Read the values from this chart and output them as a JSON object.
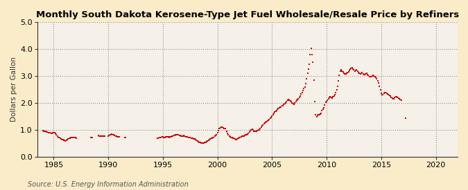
{
  "title": "Monthly South Dakota Kerosene-Type Jet Fuel Wholesale/Resale Price by Refiners",
  "ylabel": "Dollars per Gallon",
  "source": "Source: U.S. Energy Information Administration",
  "background_color": "#faecc8",
  "plot_bg_color": "#f5f0e8",
  "dot_color": "#cc0000",
  "xlim": [
    1983.5,
    2022
  ],
  "ylim": [
    0.0,
    5.0
  ],
  "xticks": [
    1985,
    1990,
    1995,
    2000,
    2005,
    2010,
    2015,
    2020
  ],
  "yticks": [
    0.0,
    1.0,
    2.0,
    3.0,
    4.0,
    5.0
  ],
  "data": [
    [
      1984.0,
      0.97
    ],
    [
      1984.08,
      0.95
    ],
    [
      1984.17,
      0.94
    ],
    [
      1984.25,
      0.93
    ],
    [
      1984.33,
      0.92
    ],
    [
      1984.42,
      0.91
    ],
    [
      1984.5,
      0.9
    ],
    [
      1984.58,
      0.89
    ],
    [
      1984.67,
      0.88
    ],
    [
      1984.75,
      0.87
    ],
    [
      1984.83,
      0.87
    ],
    [
      1984.92,
      0.88
    ],
    [
      1985.0,
      0.89
    ],
    [
      1985.08,
      0.88
    ],
    [
      1985.17,
      0.85
    ],
    [
      1985.25,
      0.8
    ],
    [
      1985.33,
      0.75
    ],
    [
      1985.42,
      0.72
    ],
    [
      1985.5,
      0.7
    ],
    [
      1985.58,
      0.68
    ],
    [
      1985.67,
      0.66
    ],
    [
      1985.75,
      0.64
    ],
    [
      1985.83,
      0.62
    ],
    [
      1985.92,
      0.61
    ],
    [
      1986.0,
      0.6
    ],
    [
      1986.08,
      0.59
    ],
    [
      1986.17,
      0.6
    ],
    [
      1986.25,
      0.63
    ],
    [
      1986.33,
      0.65
    ],
    [
      1986.42,
      0.67
    ],
    [
      1986.5,
      0.68
    ],
    [
      1986.58,
      0.7
    ],
    [
      1986.67,
      0.7
    ],
    [
      1986.75,
      0.71
    ],
    [
      1986.83,
      0.7
    ],
    [
      1986.92,
      0.7
    ],
    [
      1987.0,
      0.7
    ],
    [
      1987.08,
      0.69
    ],
    [
      1988.42,
      0.72
    ],
    [
      1988.5,
      0.72
    ],
    [
      1989.08,
      0.78
    ],
    [
      1989.17,
      0.77
    ],
    [
      1989.25,
      0.76
    ],
    [
      1989.33,
      0.76
    ],
    [
      1989.42,
      0.76
    ],
    [
      1989.5,
      0.75
    ],
    [
      1989.58,
      0.75
    ],
    [
      1989.67,
      0.75
    ],
    [
      1990.0,
      0.77
    ],
    [
      1990.08,
      0.78
    ],
    [
      1990.17,
      0.8
    ],
    [
      1990.25,
      0.82
    ],
    [
      1990.33,
      0.83
    ],
    [
      1990.42,
      0.82
    ],
    [
      1990.5,
      0.8
    ],
    [
      1990.58,
      0.78
    ],
    [
      1990.67,
      0.77
    ],
    [
      1990.75,
      0.75
    ],
    [
      1990.83,
      0.74
    ],
    [
      1990.92,
      0.73
    ],
    [
      1991.0,
      0.73
    ],
    [
      1991.5,
      0.72
    ],
    [
      1991.58,
      0.72
    ],
    [
      1994.5,
      0.68
    ],
    [
      1994.58,
      0.69
    ],
    [
      1994.67,
      0.7
    ],
    [
      1994.75,
      0.71
    ],
    [
      1994.83,
      0.72
    ],
    [
      1994.92,
      0.73
    ],
    [
      1995.0,
      0.73
    ],
    [
      1995.08,
      0.72
    ],
    [
      1995.17,
      0.72
    ],
    [
      1995.25,
      0.73
    ],
    [
      1995.33,
      0.73
    ],
    [
      1995.42,
      0.74
    ],
    [
      1995.5,
      0.73
    ],
    [
      1995.58,
      0.72
    ],
    [
      1995.67,
      0.73
    ],
    [
      1995.75,
      0.74
    ],
    [
      1995.83,
      0.76
    ],
    [
      1995.92,
      0.77
    ],
    [
      1996.0,
      0.78
    ],
    [
      1996.08,
      0.79
    ],
    [
      1996.17,
      0.8
    ],
    [
      1996.25,
      0.81
    ],
    [
      1996.33,
      0.82
    ],
    [
      1996.42,
      0.8
    ],
    [
      1996.5,
      0.79
    ],
    [
      1996.58,
      0.78
    ],
    [
      1996.67,
      0.77
    ],
    [
      1996.75,
      0.76
    ],
    [
      1996.83,
      0.77
    ],
    [
      1996.92,
      0.78
    ],
    [
      1997.0,
      0.76
    ],
    [
      1997.08,
      0.74
    ],
    [
      1997.17,
      0.73
    ],
    [
      1997.25,
      0.73
    ],
    [
      1997.33,
      0.72
    ],
    [
      1997.42,
      0.71
    ],
    [
      1997.5,
      0.7
    ],
    [
      1997.58,
      0.69
    ],
    [
      1997.67,
      0.68
    ],
    [
      1997.75,
      0.67
    ],
    [
      1997.83,
      0.66
    ],
    [
      1997.92,
      0.65
    ],
    [
      1998.0,
      0.63
    ],
    [
      1998.08,
      0.6
    ],
    [
      1998.17,
      0.57
    ],
    [
      1998.25,
      0.55
    ],
    [
      1998.33,
      0.53
    ],
    [
      1998.42,
      0.52
    ],
    [
      1998.5,
      0.51
    ],
    [
      1998.58,
      0.5
    ],
    [
      1998.67,
      0.5
    ],
    [
      1998.75,
      0.51
    ],
    [
      1998.83,
      0.52
    ],
    [
      1998.92,
      0.53
    ],
    [
      1999.0,
      0.55
    ],
    [
      1999.08,
      0.57
    ],
    [
      1999.17,
      0.6
    ],
    [
      1999.25,
      0.63
    ],
    [
      1999.33,
      0.65
    ],
    [
      1999.42,
      0.67
    ],
    [
      1999.5,
      0.68
    ],
    [
      1999.58,
      0.7
    ],
    [
      1999.67,
      0.72
    ],
    [
      1999.75,
      0.75
    ],
    [
      1999.83,
      0.78
    ],
    [
      1999.92,
      0.82
    ],
    [
      2000.0,
      0.9
    ],
    [
      2000.08,
      0.97
    ],
    [
      2000.17,
      1.03
    ],
    [
      2000.25,
      1.07
    ],
    [
      2000.33,
      1.1
    ],
    [
      2000.42,
      1.1
    ],
    [
      2000.5,
      1.08
    ],
    [
      2000.58,
      1.05
    ],
    [
      2000.67,
      1.05
    ],
    [
      2000.75,
      1.05
    ],
    [
      2000.83,
      0.93
    ],
    [
      2000.92,
      0.85
    ],
    [
      2001.0,
      0.8
    ],
    [
      2001.08,
      0.77
    ],
    [
      2001.17,
      0.73
    ],
    [
      2001.25,
      0.72
    ],
    [
      2001.33,
      0.7
    ],
    [
      2001.42,
      0.68
    ],
    [
      2001.5,
      0.67
    ],
    [
      2001.58,
      0.65
    ],
    [
      2001.67,
      0.64
    ],
    [
      2001.75,
      0.63
    ],
    [
      2001.83,
      0.65
    ],
    [
      2001.92,
      0.68
    ],
    [
      2002.0,
      0.7
    ],
    [
      2002.08,
      0.72
    ],
    [
      2002.17,
      0.73
    ],
    [
      2002.25,
      0.75
    ],
    [
      2002.33,
      0.76
    ],
    [
      2002.42,
      0.77
    ],
    [
      2002.5,
      0.79
    ],
    [
      2002.58,
      0.8
    ],
    [
      2002.67,
      0.82
    ],
    [
      2002.75,
      0.83
    ],
    [
      2002.83,
      0.87
    ],
    [
      2002.92,
      0.92
    ],
    [
      2003.0,
      0.97
    ],
    [
      2003.08,
      1.0
    ],
    [
      2003.17,
      1.02
    ],
    [
      2003.25,
      0.98
    ],
    [
      2003.33,
      0.95
    ],
    [
      2003.42,
      0.93
    ],
    [
      2003.5,
      0.93
    ],
    [
      2003.58,
      0.95
    ],
    [
      2003.67,
      0.97
    ],
    [
      2003.75,
      0.98
    ],
    [
      2003.83,
      1.0
    ],
    [
      2003.92,
      1.05
    ],
    [
      2004.0,
      1.1
    ],
    [
      2004.08,
      1.15
    ],
    [
      2004.17,
      1.18
    ],
    [
      2004.25,
      1.22
    ],
    [
      2004.33,
      1.25
    ],
    [
      2004.42,
      1.28
    ],
    [
      2004.5,
      1.3
    ],
    [
      2004.58,
      1.32
    ],
    [
      2004.67,
      1.35
    ],
    [
      2004.75,
      1.38
    ],
    [
      2004.83,
      1.42
    ],
    [
      2004.92,
      1.45
    ],
    [
      2005.0,
      1.5
    ],
    [
      2005.08,
      1.55
    ],
    [
      2005.17,
      1.6
    ],
    [
      2005.25,
      1.65
    ],
    [
      2005.33,
      1.68
    ],
    [
      2005.42,
      1.72
    ],
    [
      2005.5,
      1.75
    ],
    [
      2005.58,
      1.78
    ],
    [
      2005.67,
      1.8
    ],
    [
      2005.75,
      1.83
    ],
    [
      2005.83,
      1.85
    ],
    [
      2005.92,
      1.88
    ],
    [
      2006.0,
      1.9
    ],
    [
      2006.08,
      1.93
    ],
    [
      2006.17,
      1.97
    ],
    [
      2006.25,
      2.0
    ],
    [
      2006.33,
      2.05
    ],
    [
      2006.42,
      2.1
    ],
    [
      2006.5,
      2.13
    ],
    [
      2006.58,
      2.1
    ],
    [
      2006.67,
      2.08
    ],
    [
      2006.75,
      2.05
    ],
    [
      2006.83,
      2.0
    ],
    [
      2006.92,
      1.97
    ],
    [
      2007.0,
      1.95
    ],
    [
      2007.08,
      2.0
    ],
    [
      2007.17,
      2.05
    ],
    [
      2007.25,
      2.1
    ],
    [
      2007.33,
      2.12
    ],
    [
      2007.42,
      2.15
    ],
    [
      2007.5,
      2.2
    ],
    [
      2007.58,
      2.25
    ],
    [
      2007.67,
      2.32
    ],
    [
      2007.75,
      2.38
    ],
    [
      2007.83,
      2.45
    ],
    [
      2007.92,
      2.52
    ],
    [
      2008.0,
      2.58
    ],
    [
      2008.08,
      2.72
    ],
    [
      2008.17,
      2.9
    ],
    [
      2008.25,
      3.1
    ],
    [
      2008.33,
      3.25
    ],
    [
      2008.42,
      3.42
    ],
    [
      2008.5,
      3.78
    ],
    [
      2008.58,
      4.03
    ],
    [
      2008.67,
      3.8
    ],
    [
      2008.75,
      3.5
    ],
    [
      2008.83,
      2.85
    ],
    [
      2008.92,
      2.05
    ],
    [
      2009.0,
      1.55
    ],
    [
      2009.08,
      1.48
    ],
    [
      2009.17,
      1.52
    ],
    [
      2009.25,
      1.55
    ],
    [
      2009.33,
      1.55
    ],
    [
      2009.42,
      1.58
    ],
    [
      2009.5,
      1.62
    ],
    [
      2009.58,
      1.7
    ],
    [
      2009.67,
      1.75
    ],
    [
      2009.75,
      1.82
    ],
    [
      2009.83,
      1.92
    ],
    [
      2009.92,
      2.02
    ],
    [
      2010.0,
      2.05
    ],
    [
      2010.08,
      2.1
    ],
    [
      2010.17,
      2.15
    ],
    [
      2010.25,
      2.2
    ],
    [
      2010.33,
      2.22
    ],
    [
      2010.42,
      2.2
    ],
    [
      2010.5,
      2.18
    ],
    [
      2010.58,
      2.22
    ],
    [
      2010.67,
      2.25
    ],
    [
      2010.75,
      2.3
    ],
    [
      2010.83,
      2.38
    ],
    [
      2010.92,
      2.48
    ],
    [
      2011.0,
      2.62
    ],
    [
      2011.08,
      2.82
    ],
    [
      2011.17,
      3.02
    ],
    [
      2011.25,
      3.18
    ],
    [
      2011.33,
      3.22
    ],
    [
      2011.42,
      3.18
    ],
    [
      2011.5,
      3.15
    ],
    [
      2011.58,
      3.1
    ],
    [
      2011.67,
      3.08
    ],
    [
      2011.75,
      3.08
    ],
    [
      2011.83,
      3.1
    ],
    [
      2011.92,
      3.12
    ],
    [
      2012.0,
      3.15
    ],
    [
      2012.08,
      3.2
    ],
    [
      2012.17,
      3.25
    ],
    [
      2012.25,
      3.28
    ],
    [
      2012.33,
      3.3
    ],
    [
      2012.42,
      3.25
    ],
    [
      2012.5,
      3.22
    ],
    [
      2012.58,
      3.18
    ],
    [
      2012.67,
      3.2
    ],
    [
      2012.75,
      3.22
    ],
    [
      2012.83,
      3.18
    ],
    [
      2012.92,
      3.12
    ],
    [
      2013.0,
      3.1
    ],
    [
      2013.08,
      3.08
    ],
    [
      2013.17,
      3.1
    ],
    [
      2013.25,
      3.12
    ],
    [
      2013.33,
      3.08
    ],
    [
      2013.42,
      3.05
    ],
    [
      2013.5,
      3.05
    ],
    [
      2013.58,
      3.08
    ],
    [
      2013.67,
      3.1
    ],
    [
      2013.75,
      3.05
    ],
    [
      2013.83,
      3.02
    ],
    [
      2013.92,
      2.98
    ],
    [
      2014.0,
      2.97
    ],
    [
      2014.08,
      2.98
    ],
    [
      2014.17,
      3.0
    ],
    [
      2014.25,
      3.02
    ],
    [
      2014.33,
      3.0
    ],
    [
      2014.42,
      2.98
    ],
    [
      2014.5,
      2.95
    ],
    [
      2014.58,
      2.9
    ],
    [
      2014.67,
      2.82
    ],
    [
      2014.75,
      2.75
    ],
    [
      2014.83,
      2.62
    ],
    [
      2014.92,
      2.48
    ],
    [
      2015.0,
      2.35
    ],
    [
      2015.08,
      2.3
    ],
    [
      2015.17,
      2.3
    ],
    [
      2015.25,
      2.35
    ],
    [
      2015.33,
      2.38
    ],
    [
      2015.42,
      2.38
    ],
    [
      2015.5,
      2.35
    ],
    [
      2015.58,
      2.32
    ],
    [
      2015.67,
      2.3
    ],
    [
      2015.75,
      2.28
    ],
    [
      2015.83,
      2.25
    ],
    [
      2015.92,
      2.2
    ],
    [
      2016.0,
      2.18
    ],
    [
      2016.08,
      2.15
    ],
    [
      2016.17,
      2.15
    ],
    [
      2016.25,
      2.2
    ],
    [
      2016.33,
      2.22
    ],
    [
      2016.42,
      2.22
    ],
    [
      2016.5,
      2.2
    ],
    [
      2016.58,
      2.18
    ],
    [
      2016.67,
      2.15
    ],
    [
      2016.75,
      2.12
    ],
    [
      2016.83,
      2.1
    ],
    [
      2017.25,
      1.42
    ]
  ]
}
